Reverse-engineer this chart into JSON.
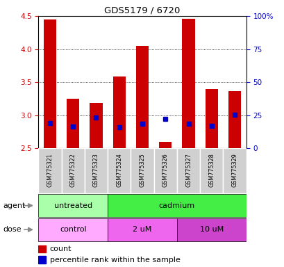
{
  "title": "GDS5179 / 6720",
  "samples": [
    "GSM775321",
    "GSM775322",
    "GSM775323",
    "GSM775324",
    "GSM775325",
    "GSM775326",
    "GSM775327",
    "GSM775328",
    "GSM775329"
  ],
  "bar_bottom": 2.5,
  "bar_tops": [
    4.45,
    3.25,
    3.18,
    3.58,
    4.05,
    2.6,
    4.46,
    3.4,
    3.36
  ],
  "blue_dot_values": [
    2.88,
    2.83,
    2.96,
    2.82,
    2.87,
    2.94,
    2.87,
    2.84,
    3.01
  ],
  "ylim_left": [
    2.5,
    4.5
  ],
  "ylim_right": [
    0,
    100
  ],
  "yticks_left": [
    2.5,
    3.0,
    3.5,
    4.0,
    4.5
  ],
  "yticks_right": [
    0,
    25,
    50,
    75,
    100
  ],
  "ytick_labels_right": [
    "0",
    "25",
    "50",
    "75",
    "100%"
  ],
  "bar_color": "#cc0000",
  "dot_color": "#0000cc",
  "bar_width": 0.55,
  "agent_untreated_color": "#aaffaa",
  "agent_cadmium_color": "#44ee44",
  "dose_control_color": "#ffaaff",
  "dose_2um_color": "#ee66ee",
  "dose_10um_color": "#cc44cc",
  "sample_cell_color": "#d0d0d0",
  "sample_cell_edge": "#ffffff",
  "legend_count_color": "#cc0000",
  "legend_pct_color": "#0000cc",
  "tick_color_left": "#cc0000",
  "tick_color_right": "#0000cc",
  "arrow_color": "#888888"
}
